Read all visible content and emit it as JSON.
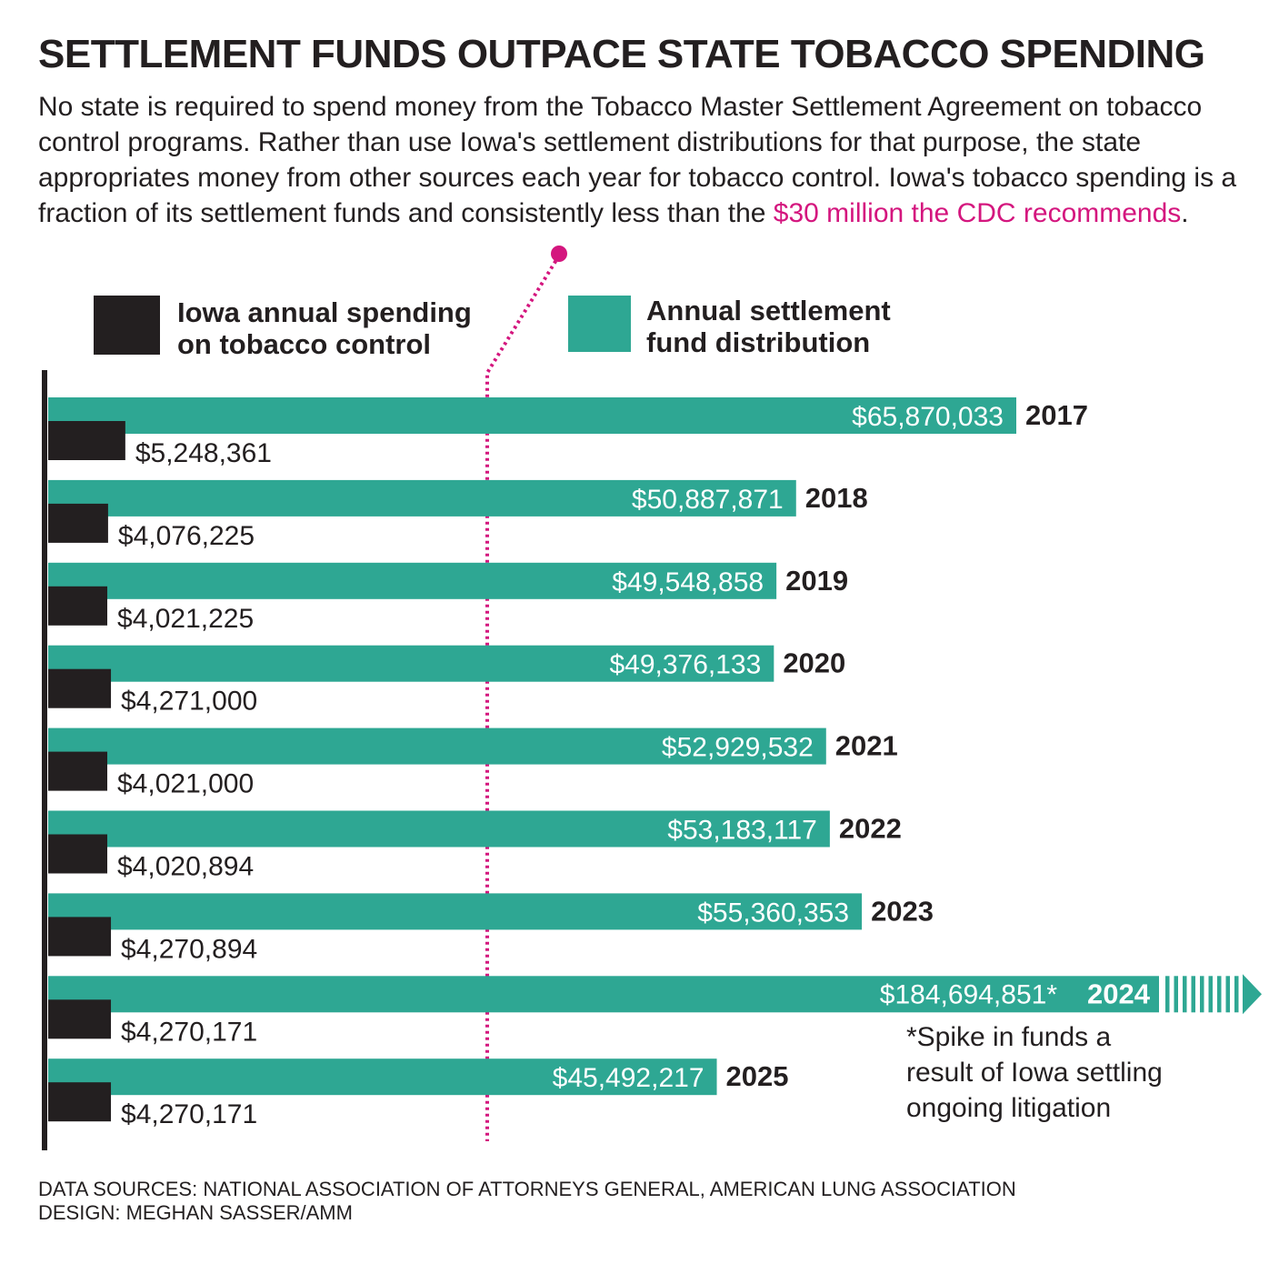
{
  "title": "SETTLEMENT FUNDS OUTPACE STATE TOBACCO SPENDING",
  "intro": {
    "before": "No state is required to spend money from the Tobacco Master Settlement Agreement on tobacco control programs. Rather than use Iowa's settlement distributions for that purpose, the state appropriates money from other sources each year for tobacco control. Iowa's tobacco spending is a fraction of its settlement funds and consistently less than the ",
    "highlight": "$30 million the CDC recommends",
    "after": "."
  },
  "legend": {
    "spending": "Iowa annual spending on tobacco control",
    "settlement": "Annual settlement fund distribution"
  },
  "colors": {
    "spending": "#231f20",
    "settlement": "#2ea793",
    "cdc_line": "#d4167e"
  },
  "chart_data": {
    "type": "bar",
    "orientation": "horizontal",
    "categories": [
      "2017",
      "2018",
      "2019",
      "2020",
      "2021",
      "2022",
      "2023",
      "2024",
      "2025"
    ],
    "series": [
      {
        "name": "Annual settlement fund distribution",
        "values": [
          65870033,
          50887871,
          49548858,
          49376133,
          52929532,
          53183117,
          55360353,
          184694851,
          45492217
        ],
        "labels": [
          "$65,870,033",
          "$50,887,871",
          "$49,548,858",
          "$49,376,133",
          "$52,929,532",
          "$53,183,117",
          "$55,360,353",
          "$184,694,851*",
          "$45,492,217"
        ]
      },
      {
        "name": "Iowa annual spending on tobacco control",
        "values": [
          5248361,
          4076225,
          4021225,
          4271000,
          4021000,
          4020894,
          4270894,
          4270171,
          4270171
        ],
        "labels": [
          "$5,248,361",
          "$4,076,225",
          "$4,021,225",
          "$4,271,000",
          "$4,021,000",
          "$4,020,894",
          "$4,270,894",
          "$4,270,171",
          "$4,270,171"
        ]
      }
    ],
    "reference_line": {
      "value": 30000000
    },
    "truncated_category": "2024",
    "annotation": "*Spike in funds a result of Iowa settling ongoing litigation",
    "grid": false,
    "x_axis_visible": false
  },
  "footer": {
    "sources": "DATA SOURCES: NATIONAL ASSOCIATION OF ATTORNEYS GENERAL, AMERICAN LUNG ASSOCIATION",
    "design": "DESIGN: MEGHAN SASSER/AMM"
  }
}
